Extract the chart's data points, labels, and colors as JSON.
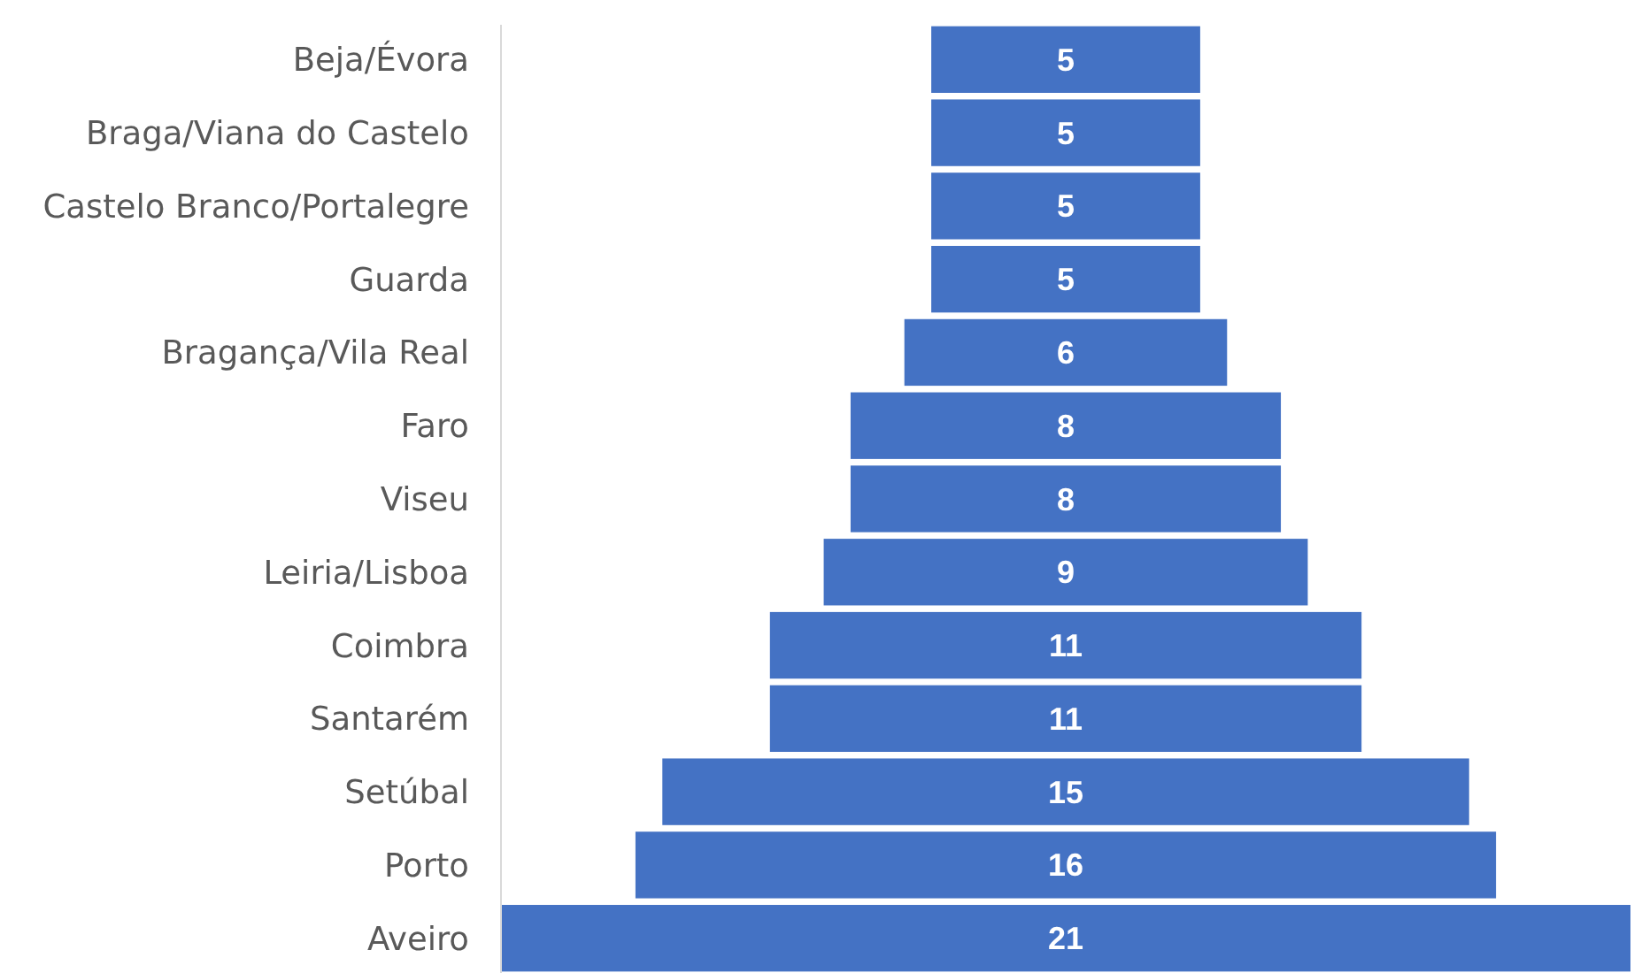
{
  "chart_data": {
    "type": "other",
    "categories": [
      "Beja/Évora",
      "Braga/Viana do Castelo",
      "Castelo Branco/Portalegre",
      "Guarda",
      "Bragança/Vila Real",
      "Faro",
      "Viseu",
      "Leiria/Lisboa",
      "Coimbra",
      "Santarém",
      "Setúbal",
      "Porto",
      "Aveiro"
    ],
    "values": [
      5,
      5,
      5,
      5,
      6,
      8,
      8,
      9,
      11,
      11,
      15,
      16,
      21
    ],
    "color": "#4472c4",
    "data_labels": true
  }
}
